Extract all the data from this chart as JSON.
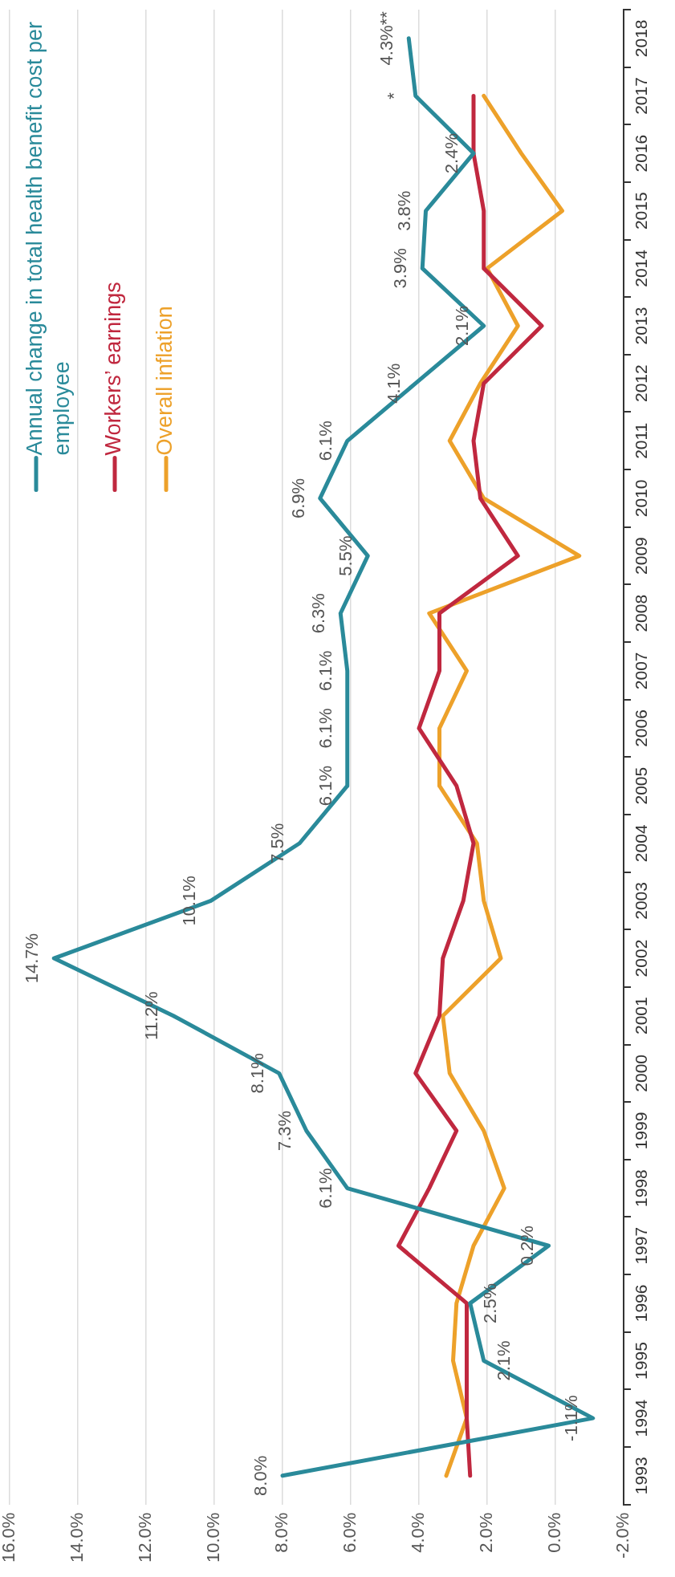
{
  "chart_data": {
    "type": "line",
    "orientation": "horizontal",
    "categories": [
      "2018",
      "2017",
      "2016",
      "2015",
      "2014",
      "2013",
      "2012",
      "2011",
      "2010",
      "2009",
      "2008",
      "2007",
      "2006",
      "2005",
      "2004",
      "2003",
      "2002",
      "2001",
      "2000",
      "1999",
      "1998",
      "1997",
      "1996",
      "1995",
      "1994",
      "1993"
    ],
    "series": [
      {
        "name": "Annual change in total health benefit cost per employee",
        "color": "#2a8a9a",
        "values": [
          4.3,
          4.1,
          2.4,
          3.8,
          3.9,
          2.1,
          4.1,
          6.1,
          6.9,
          5.5,
          6.3,
          6.1,
          6.1,
          6.1,
          7.5,
          10.1,
          14.7,
          11.2,
          8.1,
          7.3,
          6.1,
          0.2,
          2.5,
          2.1,
          -1.1,
          8.0
        ],
        "value_labels": [
          "4.3%**",
          "*",
          "2.4%",
          "3.8%",
          "3.9%",
          "2.1%",
          "4.1%",
          "6.1%",
          "6.9%",
          "5.5%",
          "6.3%",
          "6.1%",
          "6.1%",
          "6.1%",
          "7.5%",
          "10.1%",
          "14.7%",
          "11.2%",
          "8.1%",
          "7.3%",
          "6.1%",
          "0.2%",
          "2.5%",
          "2.1%",
          "-1.1%",
          "8.0%"
        ]
      },
      {
        "name": "Workers’ earnings",
        "color": "#c0283f",
        "values": [
          null,
          2.4,
          2.4,
          2.1,
          2.1,
          0.4,
          2.1,
          2.4,
          2.2,
          1.1,
          3.4,
          3.4,
          4.0,
          2.9,
          2.4,
          2.7,
          3.3,
          3.4,
          4.1,
          2.9,
          3.7,
          4.6,
          2.6,
          2.6,
          2.6,
          2.5
        ]
      },
      {
        "name": "Overall inflation",
        "color": "#eda12a",
        "values": [
          null,
          2.1,
          1.0,
          -0.2,
          2.0,
          1.1,
          2.2,
          3.1,
          2.1,
          -0.7,
          3.7,
          2.6,
          3.4,
          3.4,
          2.3,
          2.1,
          1.6,
          3.3,
          3.1,
          2.1,
          1.5,
          2.4,
          2.9,
          3.0,
          2.6,
          3.2
        ]
      }
    ],
    "xlim": [
      16,
      -2
    ],
    "xticks": [
      {
        "value": 16,
        "label": "16.0%"
      },
      {
        "value": 14,
        "label": "14.0%"
      },
      {
        "value": 12,
        "label": "12.0%"
      },
      {
        "value": 10,
        "label": "10.0%"
      },
      {
        "value": 8,
        "label": "8.0%"
      },
      {
        "value": 6,
        "label": "6.0%"
      },
      {
        "value": 4,
        "label": "4.0%"
      },
      {
        "value": 2,
        "label": "2.0%"
      },
      {
        "value": 0,
        "label": "0.0%"
      },
      {
        "value": -2,
        "label": "-2.0%"
      }
    ],
    "grid": "x",
    "legend": "top left",
    "marker": "none",
    "line_style": "solid"
  }
}
